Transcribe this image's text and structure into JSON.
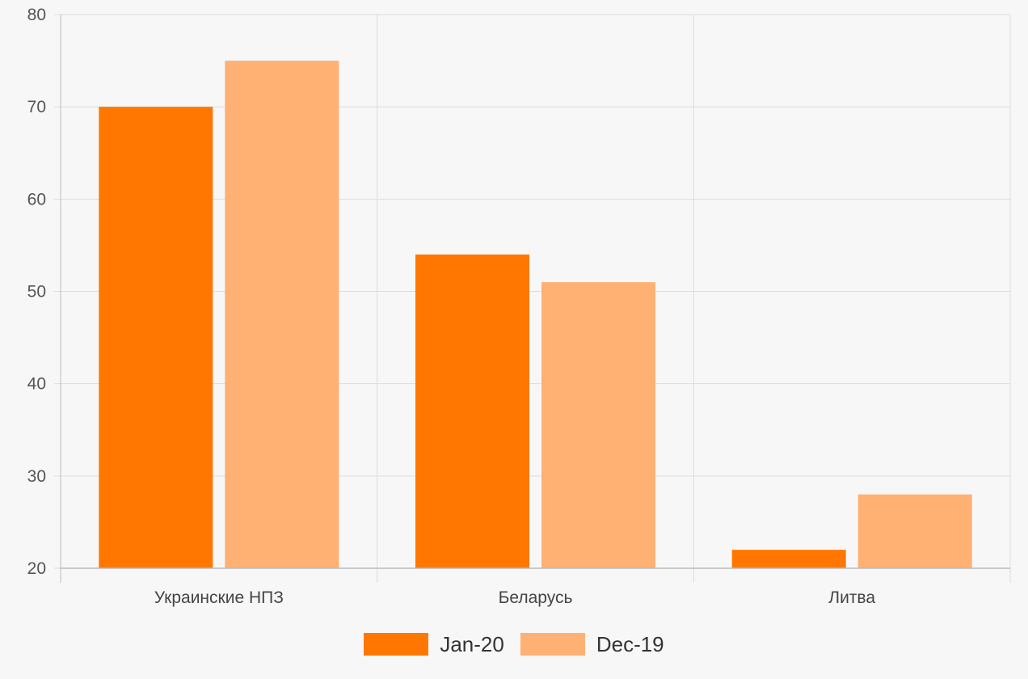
{
  "chart_data": {
    "type": "bar",
    "title": "",
    "xlabel": "",
    "ylabel": "",
    "categories": [
      "Украинские НПЗ",
      "Беларусь",
      "Литва"
    ],
    "series": [
      {
        "name": "Jan-20",
        "values": [
          70,
          54,
          22
        ],
        "color": "#ff7700"
      },
      {
        "name": "Dec-19",
        "values": [
          75,
          51,
          28
        ],
        "color": "#ffb073"
      }
    ],
    "ylim": [
      20,
      80
    ],
    "yticks": [
      "20",
      "30",
      "40",
      "50",
      "60",
      "70",
      "80"
    ],
    "grid": true,
    "legend_position": "bottom"
  }
}
